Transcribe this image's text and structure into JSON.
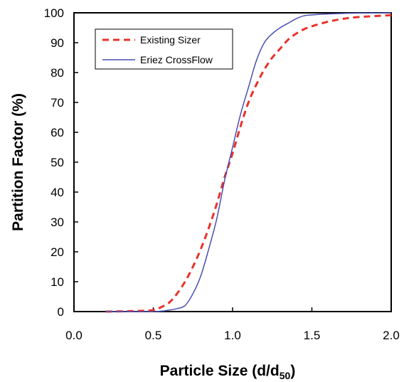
{
  "chart_data": {
    "type": "line",
    "title": "",
    "xlabel": "Particle Size (d/d",
    "xlabel_sub": "50",
    "xlabel_end": ")",
    "ylabel": "Partition Factor (%)",
    "xlim": [
      0.0,
      2.0
    ],
    "ylim": [
      0,
      100
    ],
    "x_ticks": [
      "0.0",
      "0.5",
      "1.0",
      "1.5",
      "2.0"
    ],
    "y_ticks": [
      "0",
      "10",
      "20",
      "30",
      "40",
      "50",
      "60",
      "70",
      "80",
      "90",
      "100"
    ],
    "legend_position": "top-left",
    "grid": false,
    "series": [
      {
        "name": "Existing Sizer",
        "color": "#e8322a",
        "style": "dashed",
        "x": [
          0.2,
          0.4,
          0.5,
          0.55,
          0.6,
          0.65,
          0.7,
          0.75,
          0.8,
          0.85,
          0.9,
          0.95,
          1.0,
          1.05,
          1.1,
          1.15,
          1.2,
          1.25,
          1.3,
          1.35,
          1.4,
          1.45,
          1.5,
          1.6,
          1.7,
          1.8,
          2.0
        ],
        "y": [
          0,
          0.2,
          0.5,
          1.5,
          3,
          6,
          10,
          15,
          21,
          28,
          36,
          45,
          53,
          62,
          70,
          76,
          81,
          85,
          88,
          91,
          93,
          94.5,
          95.5,
          97,
          98,
          98.6,
          99.2
        ]
      },
      {
        "name": "Eriez CrossFlow",
        "color": "#4a4fb0",
        "style": "solid",
        "x": [
          0.2,
          0.5,
          0.6,
          0.65,
          0.7,
          0.75,
          0.8,
          0.85,
          0.9,
          0.95,
          1.0,
          1.05,
          1.1,
          1.15,
          1.2,
          1.25,
          1.3,
          1.35,
          1.4,
          1.45,
          1.5,
          1.6,
          1.7,
          1.8,
          2.0
        ],
        "y": [
          0,
          0,
          0.5,
          1,
          2,
          6,
          12,
          21,
          31,
          44,
          55,
          66,
          75,
          84,
          90,
          93,
          95,
          96.5,
          98,
          99,
          99.3,
          99.6,
          99.8,
          99.9,
          100
        ]
      }
    ]
  }
}
